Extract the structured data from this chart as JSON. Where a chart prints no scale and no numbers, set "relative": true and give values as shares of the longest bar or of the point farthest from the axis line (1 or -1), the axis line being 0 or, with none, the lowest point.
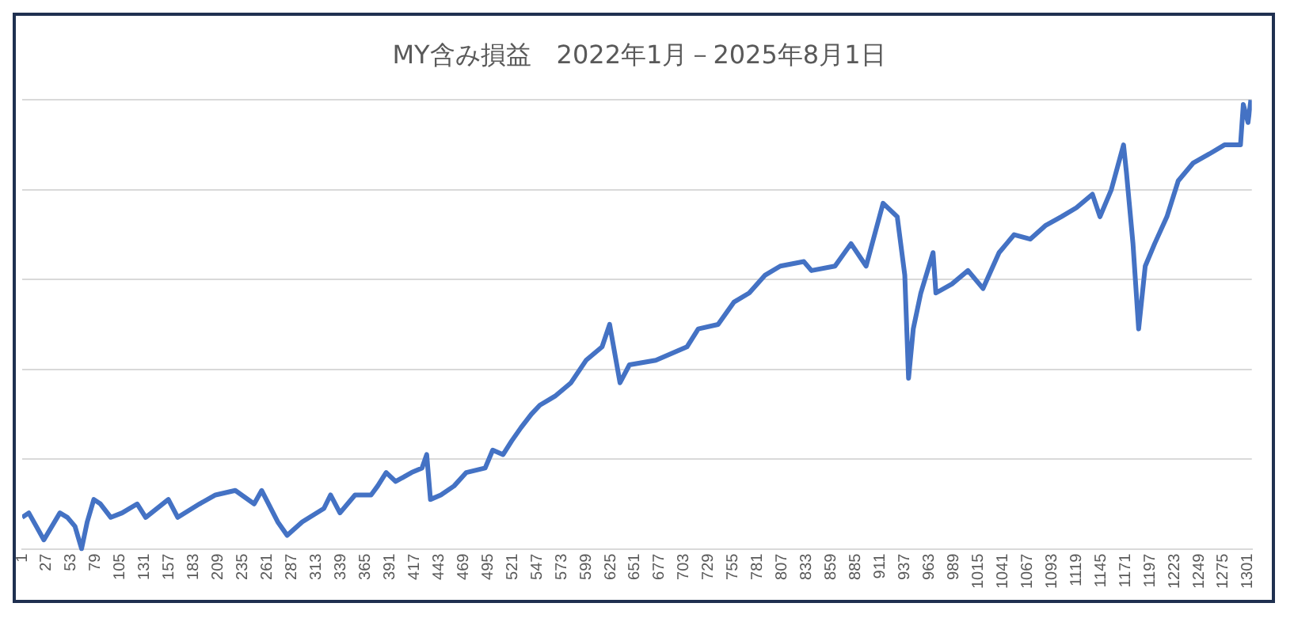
{
  "chart_data": {
    "type": "line",
    "title": "MY含み損益　2022年1月－2025年8月1日",
    "relative": true,
    "grid": "y",
    "marker": "none",
    "xlim": [
      1,
      1305
    ],
    "xticks": [
      1,
      27,
      53,
      79,
      105,
      131,
      157,
      183,
      209,
      235,
      261,
      287,
      313,
      339,
      365,
      391,
      417,
      443,
      469,
      495,
      521,
      547,
      573,
      599,
      625,
      651,
      677,
      703,
      729,
      755,
      781,
      807,
      833,
      859,
      885,
      911,
      937,
      963,
      989,
      1015,
      1041,
      1067,
      1093,
      1119,
      1145,
      1171,
      1197,
      1223,
      1249,
      1275,
      1301
    ],
    "series": [
      {
        "color": "#4472c4",
        "x": [
          1,
          8,
          16,
          24,
          41,
          49,
          57,
          64,
          70,
          77,
          84,
          95,
          107,
          123,
          132,
          156,
          166,
          189,
          206,
          227,
          247,
          255,
          272,
          282,
          298,
          321,
          328,
          338,
          354,
          371,
          378,
          387,
          397,
          414,
          425,
          430,
          434,
          445,
          459,
          472,
          492,
          500,
          511,
          520,
          530,
          541,
          550,
          566,
          583,
          599,
          616,
          624,
          635,
          645,
          673,
          706,
          718,
          739,
          756,
          772,
          789,
          805,
          830,
          838,
          863,
          880,
          896,
          914,
          929,
          937,
          941,
          946,
          954,
          967,
          970,
          987,
          1004,
          1020,
          1037,
          1053,
          1070,
          1086,
          1103,
          1119,
          1136,
          1144,
          1156,
          1169,
          1172,
          1179,
          1185,
          1192,
          1202,
          1215,
          1227,
          1243,
          1260,
          1276,
          1293,
          1296,
          1301,
          1304
        ],
        "values": [
          0.07,
          0.08,
          0.05,
          0.02,
          0.08,
          0.07,
          0.05,
          0,
          0.06,
          0.11,
          0.1,
          0.07,
          0.08,
          0.1,
          0.07,
          0.11,
          0.07,
          0.1,
          0.12,
          0.13,
          0.1,
          0.13,
          0.06,
          0.03,
          0.06,
          0.09,
          0.12,
          0.08,
          0.12,
          0.12,
          0.14,
          0.17,
          0.15,
          0.17,
          0.18,
          0.21,
          0.11,
          0.12,
          0.14,
          0.17,
          0.18,
          0.22,
          0.21,
          0.24,
          0.27,
          0.3,
          0.32,
          0.34,
          0.37,
          0.42,
          0.45,
          0.5,
          0.37,
          0.41,
          0.42,
          0.45,
          0.49,
          0.5,
          0.55,
          0.57,
          0.61,
          0.63,
          0.64,
          0.62,
          0.63,
          0.68,
          0.63,
          0.77,
          0.74,
          0.61,
          0.38,
          0.49,
          0.57,
          0.66,
          0.57,
          0.59,
          0.62,
          0.58,
          0.66,
          0.7,
          0.69,
          0.72,
          0.74,
          0.76,
          0.79,
          0.74,
          0.8,
          0.9,
          0.84,
          0.68,
          0.49,
          0.63,
          0.68,
          0.74,
          0.82,
          0.86,
          0.88,
          0.9,
          0.9,
          0.99,
          0.95,
          1
        ]
      }
    ]
  }
}
